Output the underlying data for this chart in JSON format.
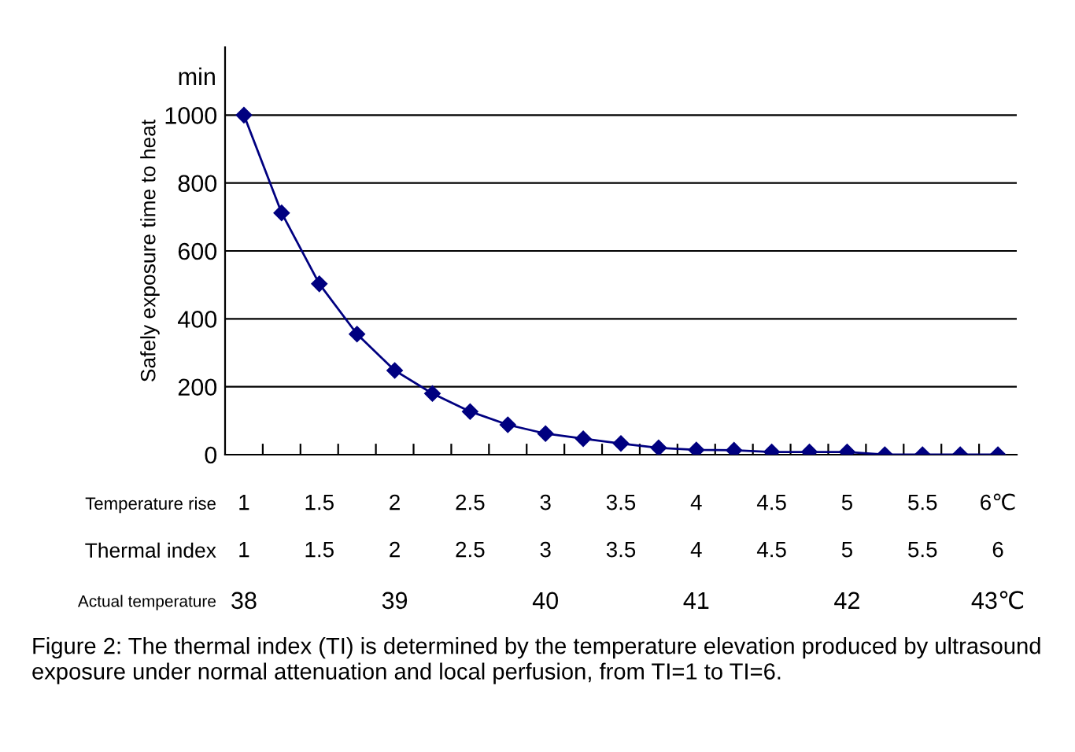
{
  "chart_data": {
    "type": "line",
    "ylabel": "Safely exposure time to heat",
    "xlabel": "Thermal index",
    "x2label": "Temperature rise",
    "x": [
      1,
      1.25,
      1.5,
      1.75,
      2,
      2.25,
      2.5,
      2.75,
      3,
      3.25,
      3.5,
      3.75,
      4,
      4.25,
      4.5,
      4.75,
      5,
      5.25,
      5.5,
      5.75,
      6
    ],
    "series": [
      {
        "color": "#000080",
        "values": [
          1000,
          712,
          503,
          355,
          248,
          180,
          127,
          88,
          62,
          47,
          33,
          20,
          14,
          13,
          8,
          8,
          8,
          0,
          0,
          0,
          0
        ]
      }
    ],
    "xlim": [
      0.875,
      6.125
    ],
    "xticks": [
      1,
      1.5,
      2,
      2.5,
      3,
      3.5,
      4,
      4.5,
      5,
      5.5,
      6,
      {
        "value": 1.125,
        "label": null
      },
      {
        "value": 1.375,
        "label": null
      },
      {
        "value": 1.625,
        "label": null
      },
      {
        "value": 1.875,
        "label": null
      },
      {
        "value": 2.125,
        "label": null
      },
      {
        "value": 2.375,
        "label": null
      },
      {
        "value": 2.625,
        "label": null
      },
      {
        "value": 2.875,
        "label": null
      },
      {
        "value": 3.125,
        "label": null
      },
      {
        "value": 3.375,
        "label": null
      },
      {
        "value": 3.625,
        "label": null
      },
      {
        "value": 3.875,
        "label": null
      },
      {
        "value": 4.125,
        "label": null
      },
      {
        "value": 4.375,
        "label": null
      },
      {
        "value": 4.625,
        "label": null
      },
      {
        "value": 4.875,
        "label": null
      },
      {
        "value": 5.125,
        "label": null
      },
      {
        "value": 5.375,
        "label": null
      },
      {
        "value": 5.625,
        "label": null
      },
      {
        "value": 5.875,
        "label": null
      }
    ],
    "x2lim": [
      0.875,
      6.125
    ],
    "x2ticks": [
      1,
      1.5,
      2,
      2.5,
      3,
      3.5,
      4,
      4.5,
      5,
      5.5,
      {
        "value": 6,
        "label": "6℃"
      }
    ],
    "ylim": [
      0,
      1200
    ],
    "yticks": [
      0,
      200,
      400,
      600,
      800,
      1000
    ],
    "grid": "y",
    "marker": "diamond",
    "line_style": "solid",
    "annotations": [
      "min",
      "Actual temperature",
      "38",
      "39",
      "40",
      "41",
      "42",
      "43℃",
      "Figure 2: The thermal index (TI) is determined by the temperature elevation produced by ultrasound exposure under normal attenuation and local perfusion, from TI=1 to TI=6."
    ]
  }
}
